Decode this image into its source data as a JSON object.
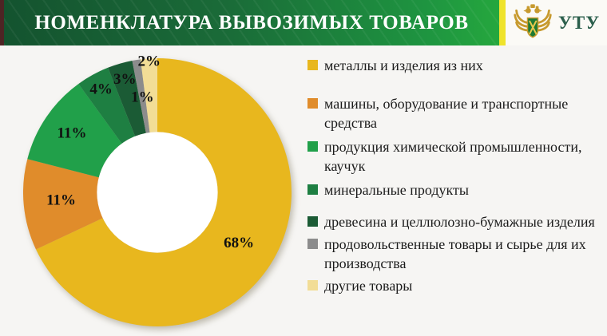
{
  "header": {
    "title": "НОМЕНКЛАТУРА ВЫВОЗИМЫХ ТОВАРОВ",
    "org_abbr": "УТУ"
  },
  "colors": {
    "banner_green_dark": "#14532F",
    "banner_green_light": "#25A73E",
    "banner_left_stripe": "#4E2424",
    "banner_accent_stripe": "#EFE32B",
    "logo_panel_bg": "#FBFAF6",
    "org_text_green": "#2B5F4C",
    "slide_bg": "#F6F5F3",
    "emblem_gold": "#C79A2E",
    "emblem_shield_green": "#1E7A33"
  },
  "chart_data": {
    "type": "pie",
    "subtype": "donut",
    "direction": "clockwise",
    "start_angle_deg": 0,
    "inner_radius_ratio": 0.45,
    "legend_position": "right",
    "data_label_color": "#111111",
    "hole_color": "#FFFFFF",
    "slices": [
      {
        "label": "металлы и изделия из них",
        "value": 68,
        "data_label": "68%",
        "color": "#E8B71E"
      },
      {
        "label": "машины, оборудование и транспортные средства",
        "value": 11,
        "data_label": "11%",
        "color": "#E08C2B"
      },
      {
        "label": "продукция химической промышленности, каучук",
        "value": 11,
        "data_label": "11%",
        "color": "#21A04A"
      },
      {
        "label": "минеральные продукты",
        "value": 4,
        "data_label": "4%",
        "color": "#1E7F42"
      },
      {
        "label": "древесина и целлюлозно-бумажные изделия",
        "value": 3,
        "data_label": "3%",
        "color": "#1B5B35"
      },
      {
        "label": "продовольственные товары и сырье для их производства",
        "value": 1,
        "data_label": "1%",
        "color": "#8C8C8C"
      },
      {
        "label": "другие товары",
        "value": 2,
        "data_label": "2%",
        "color": "#F2DD96"
      }
    ],
    "label_radius_factors": [
      0.72,
      0.72,
      0.77,
      0.87,
      0.87,
      0.71,
      0.97
    ]
  }
}
